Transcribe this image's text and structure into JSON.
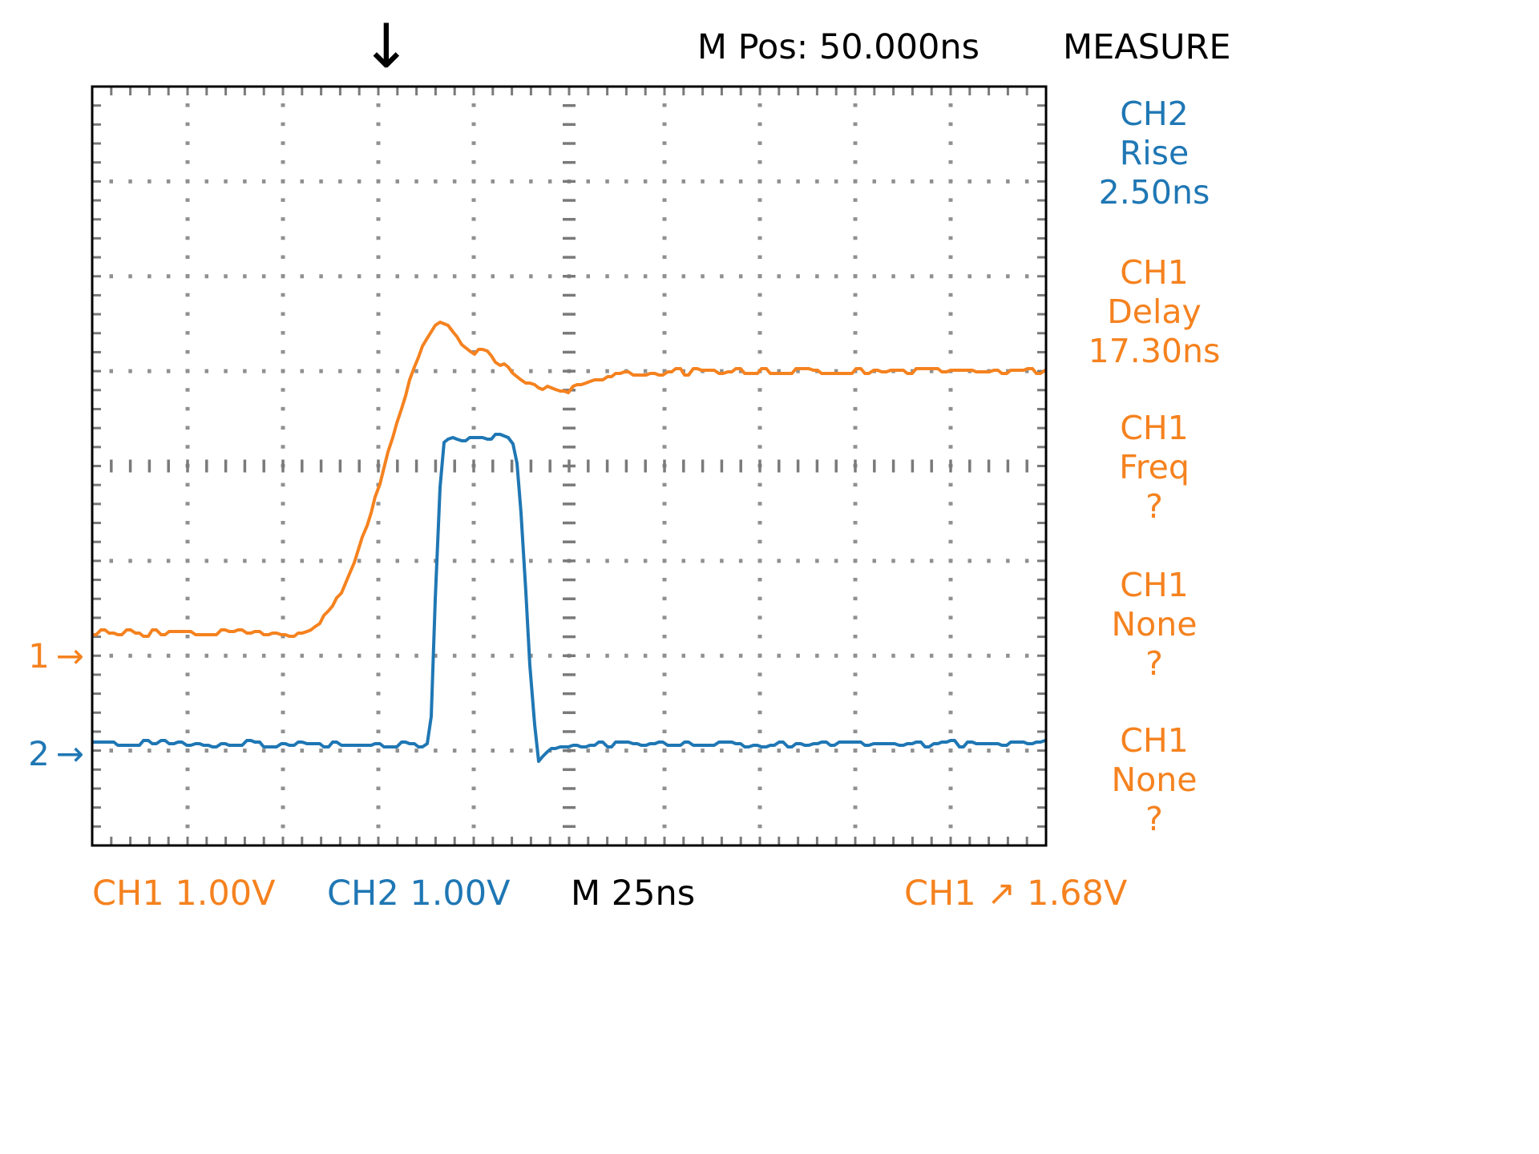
{
  "colors": {
    "ch1": "#f5821f",
    "ch2": "#1f77b4",
    "grid_dots": "#909090",
    "grid_ticks": "#7a7a7a",
    "border": "#000000",
    "text": "#000000",
    "background": "#ffffff"
  },
  "header": {
    "m_pos": "M Pos: 50.000ns",
    "measure_title": "MEASURE",
    "trigger_marker_symbol": "↓"
  },
  "measurements": [
    {
      "channel": "CH2",
      "type": "Rise",
      "value": "2.50ns",
      "color_key": "ch2"
    },
    {
      "channel": "CH1",
      "type": "Delay",
      "value": "17.30ns",
      "color_key": "ch1"
    },
    {
      "channel": "CH1",
      "type": "Freq",
      "value": "?",
      "color_key": "ch1"
    },
    {
      "channel": "CH1",
      "type": "None",
      "value": "?",
      "color_key": "ch1"
    },
    {
      "channel": "CH1",
      "type": "None",
      "value": "?",
      "color_key": "ch1"
    }
  ],
  "channel_markers": [
    {
      "label": "1",
      "arrow": "→",
      "color_key": "ch1",
      "y_div": -2.0
    },
    {
      "label": "2",
      "arrow": "→",
      "color_key": "ch2",
      "y_div": -3.03
    }
  ],
  "footer": [
    {
      "text": "CH1 1.00V",
      "color_key": "ch1"
    },
    {
      "text": "CH2 1.00V",
      "color_key": "ch2"
    },
    {
      "text": "M 25ns",
      "color_key": "text"
    },
    {
      "text": "CH1 ↗ 1.68V",
      "color_key": "ch1"
    }
  ],
  "chart_data": {
    "type": "line",
    "x_unit": "ns",
    "x_range_ns": [
      0,
      250
    ],
    "time_per_div_ns": 25,
    "divisions": {
      "x": 10,
      "y": 8
    },
    "volts_per_div": {
      "CH1": 1.0,
      "CH2": 1.0
    },
    "trigger_position_ns": 75,
    "trigger_level_v": 1.68,
    "trigger_source": "CH1",
    "trigger_slope": "rising",
    "measurement_values": {
      "ch2_rise_ns": 2.5,
      "ch1_delay_ns": 17.3
    },
    "points_format": "points_div: [x in screen divisions (25ns/div), y in divisions from screen center (1V/div)]",
    "series": [
      {
        "name": "CH1",
        "color_key": "ch1",
        "ground_y_div": -2.0,
        "baseline_v": 0.25,
        "settled_v": 3.0,
        "peak_v": 3.55,
        "noise_div": 0.035,
        "seed": 11,
        "points_div": [
          [
            0,
            -1.76
          ],
          [
            2.2,
            -1.76
          ],
          [
            2.35,
            -1.68
          ],
          [
            2.5,
            -1.52
          ],
          [
            2.62,
            -1.3
          ],
          [
            2.75,
            -1.0
          ],
          [
            2.88,
            -0.62
          ],
          [
            3.0,
            -0.25
          ],
          [
            3.12,
            0.2
          ],
          [
            3.25,
            0.65
          ],
          [
            3.38,
            1.05
          ],
          [
            3.5,
            1.35
          ],
          [
            3.62,
            1.53
          ],
          [
            3.72,
            1.5
          ],
          [
            3.85,
            1.32
          ],
          [
            4.0,
            1.2
          ],
          [
            4.12,
            1.22
          ],
          [
            4.3,
            1.06
          ],
          [
            4.55,
            0.9
          ],
          [
            4.8,
            0.82
          ],
          [
            5.0,
            0.8
          ],
          [
            5.25,
            0.9
          ],
          [
            5.6,
            0.98
          ],
          [
            6.0,
            1.0
          ],
          [
            10,
            1.0
          ]
        ]
      },
      {
        "name": "CH2",
        "color_key": "ch2",
        "ground_y_div": -3.03,
        "low_v": 0.1,
        "high_v": 3.35,
        "pulse_width_ns": 24,
        "noise_div": 0.03,
        "seed": 29,
        "points_div": [
          [
            0,
            -2.93
          ],
          [
            3.52,
            -2.93
          ],
          [
            3.56,
            -2.6
          ],
          [
            3.6,
            -1.4
          ],
          [
            3.65,
            -0.1
          ],
          [
            3.69,
            0.27
          ],
          [
            3.74,
            0.31
          ],
          [
            3.9,
            0.29
          ],
          [
            4.05,
            0.31
          ],
          [
            4.2,
            0.3
          ],
          [
            4.35,
            0.31
          ],
          [
            4.44,
            0.2
          ],
          [
            4.5,
            -0.5
          ],
          [
            4.56,
            -1.6
          ],
          [
            4.62,
            -2.6
          ],
          [
            4.68,
            -3.12
          ],
          [
            4.74,
            -3.05
          ],
          [
            4.85,
            -2.95
          ],
          [
            5.0,
            -2.93
          ],
          [
            10,
            -2.93
          ]
        ]
      }
    ]
  }
}
